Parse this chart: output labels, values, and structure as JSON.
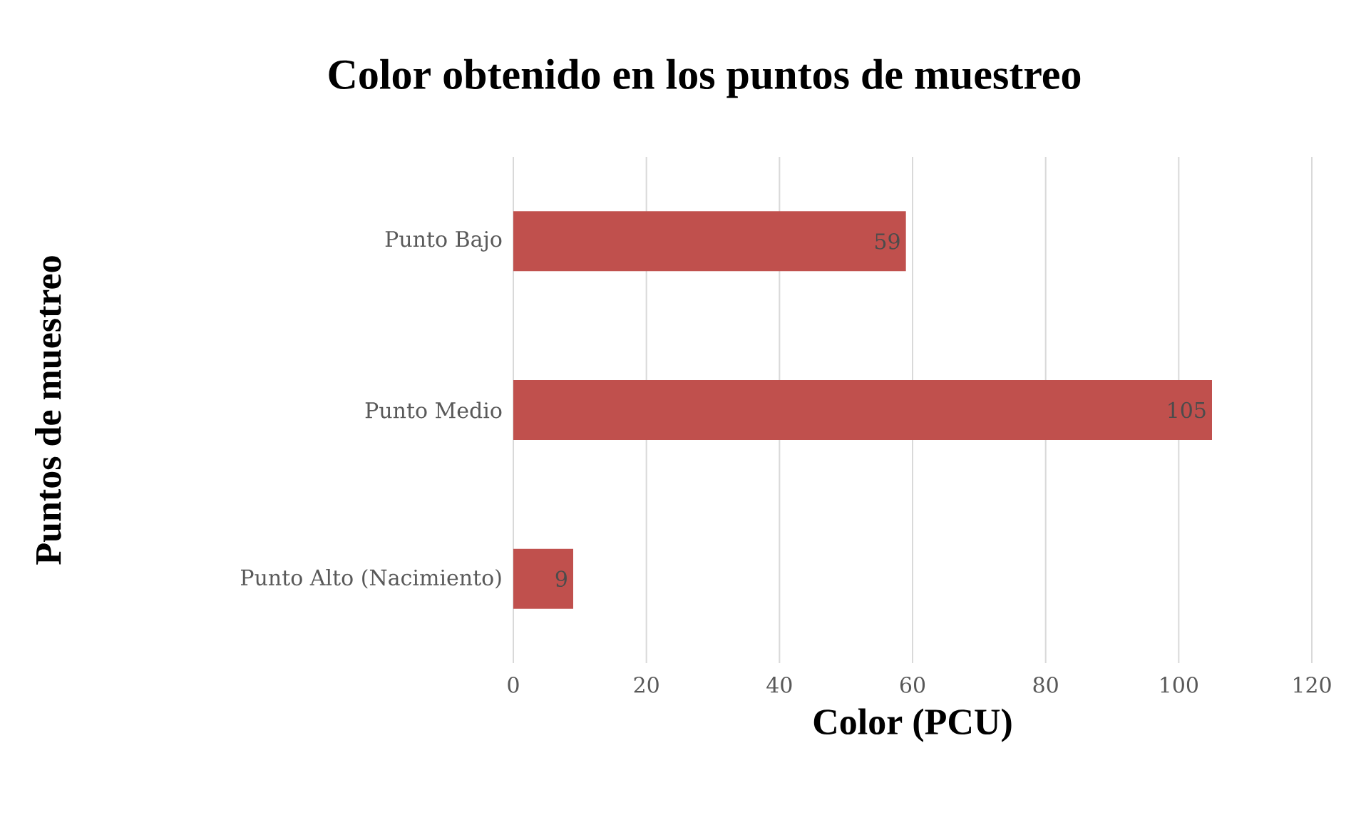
{
  "chart_data": {
    "type": "bar",
    "orientation": "horizontal",
    "title": "Color obtenido en los puntos de muestreo",
    "xlabel": "Color (PCU)",
    "ylabel": "Puntos de muestreo",
    "categories": [
      "Punto Bajo",
      "Punto Medio",
      "Punto Alto (Nacimiento)"
    ],
    "values": [
      59,
      105,
      9
    ],
    "color": "#c0504d",
    "xlim": [
      0,
      120
    ],
    "xticks": [
      0,
      20,
      40,
      60,
      80,
      100,
      120
    ],
    "grid": "x",
    "data_labels": true
  }
}
